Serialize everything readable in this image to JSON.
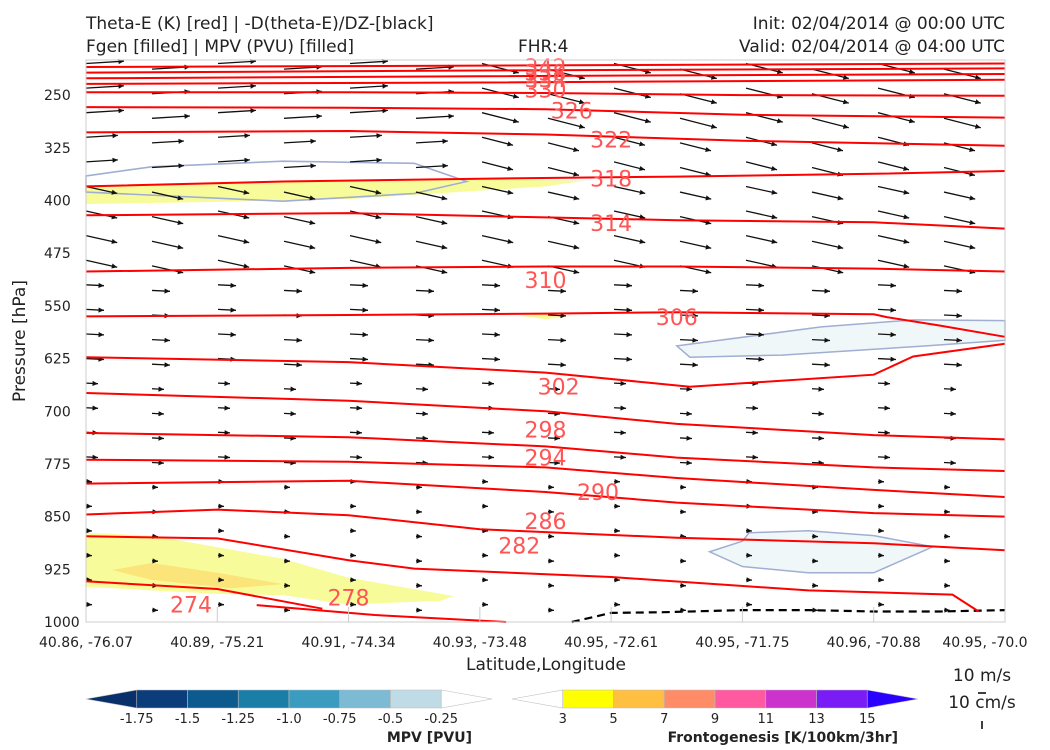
{
  "header": {
    "title_left_1": "Theta-E (K) [red] | -D(theta-E)/DZ-[black]",
    "title_left_2": "Fgen [filled] | MPV (PVU) [filled]",
    "fhr": "FHR:4",
    "init": "Init: 02/04/2014 @ 00:00 UTC",
    "valid": "Valid: 02/04/2014 @ 04:00 UTC"
  },
  "chart_data": {
    "type": "cross-section",
    "xlabel": "Latitude,Longitude",
    "ylabel": "Pressure [hPa]",
    "x_ticks": [
      "40.86, -76.07",
      "40.89, -75.21",
      "40.91, -74.34",
      "40.93, -73.48",
      "40.95, -72.61",
      "40.95, -71.75",
      "40.96, -70.88",
      "40.95, -70.0"
    ],
    "y_ticks": [
      "250",
      "325",
      "400",
      "475",
      "550",
      "625",
      "700",
      "775",
      "850",
      "925",
      "1000"
    ],
    "ylim": [
      1000,
      200
    ],
    "grid": false,
    "contour_levels_K": [
      274,
      278,
      282,
      286,
      290,
      294,
      298,
      302,
      306,
      310,
      314,
      318,
      322,
      326,
      330,
      334,
      338,
      342
    ],
    "visible_contour_labels": [
      {
        "text": "342",
        "x": 3.5,
        "p": 210
      },
      {
        "text": "338",
        "x": 3.5,
        "p": 218
      },
      {
        "text": "334",
        "x": 3.5,
        "p": 227
      },
      {
        "text": "330",
        "x": 3.5,
        "p": 242
      },
      {
        "text": "326",
        "x": 3.7,
        "p": 272
      },
      {
        "text": "322",
        "x": 4.0,
        "p": 313
      },
      {
        "text": "318",
        "x": 4.0,
        "p": 369
      },
      {
        "text": "314",
        "x": 4.0,
        "p": 432
      },
      {
        "text": "310",
        "x": 3.5,
        "p": 513
      },
      {
        "text": "306",
        "x": 4.5,
        "p": 566
      },
      {
        "text": "302",
        "x": 3.6,
        "p": 665
      },
      {
        "text": "298",
        "x": 3.5,
        "p": 726
      },
      {
        "text": "294",
        "x": 3.5,
        "p": 766
      },
      {
        "text": "290",
        "x": 3.9,
        "p": 815
      },
      {
        "text": "286",
        "x": 3.5,
        "p": 856
      },
      {
        "text": "282",
        "x": 3.3,
        "p": 891
      },
      {
        "text": "278",
        "x": 2.0,
        "p": 965
      },
      {
        "text": "274",
        "x": 0.8,
        "p": 975
      },
      {
        "text": "318",
        "x": 5.5,
        "p": 200
      }
    ],
    "mpv_colorbar": {
      "title": "MPV [PVU]",
      "ticks": [
        "-1.75",
        "-1.5",
        "-1.25",
        "-1.0",
        "-0.75",
        "-0.5",
        "-0.25"
      ],
      "colors": [
        "#08306b",
        "#0b3d7a",
        "#0d5a8e",
        "#1a7ea6",
        "#3b9cc0",
        "#7dbad3",
        "#bfdbe6",
        "#ffffff"
      ]
    },
    "fgen_colorbar": {
      "title": "Frontogenesis [K/100km/3hr]",
      "ticks": [
        "3",
        "5",
        "7",
        "9",
        "11",
        "13",
        "15"
      ],
      "colors": [
        "#ffffff",
        "#ffff00",
        "#ffbf40",
        "#ff8c66",
        "#ff5aa0",
        "#cc33cc",
        "#7a1cf5",
        "#2a00ff"
      ]
    },
    "wind_key": {
      "horizontal": "10 m/s",
      "vertical": "10 cm/s"
    }
  },
  "colors": {
    "theta_e": "#ff0000",
    "theta_e_label": "#ff5555",
    "mpv_fill": "#f0f7f9",
    "mpv_outline": "#a0aed2",
    "fgen_fill": "#f8fb9a",
    "fgen_fill_strong": "#fbe47a",
    "stability": "#000000",
    "wind": "#111111"
  }
}
